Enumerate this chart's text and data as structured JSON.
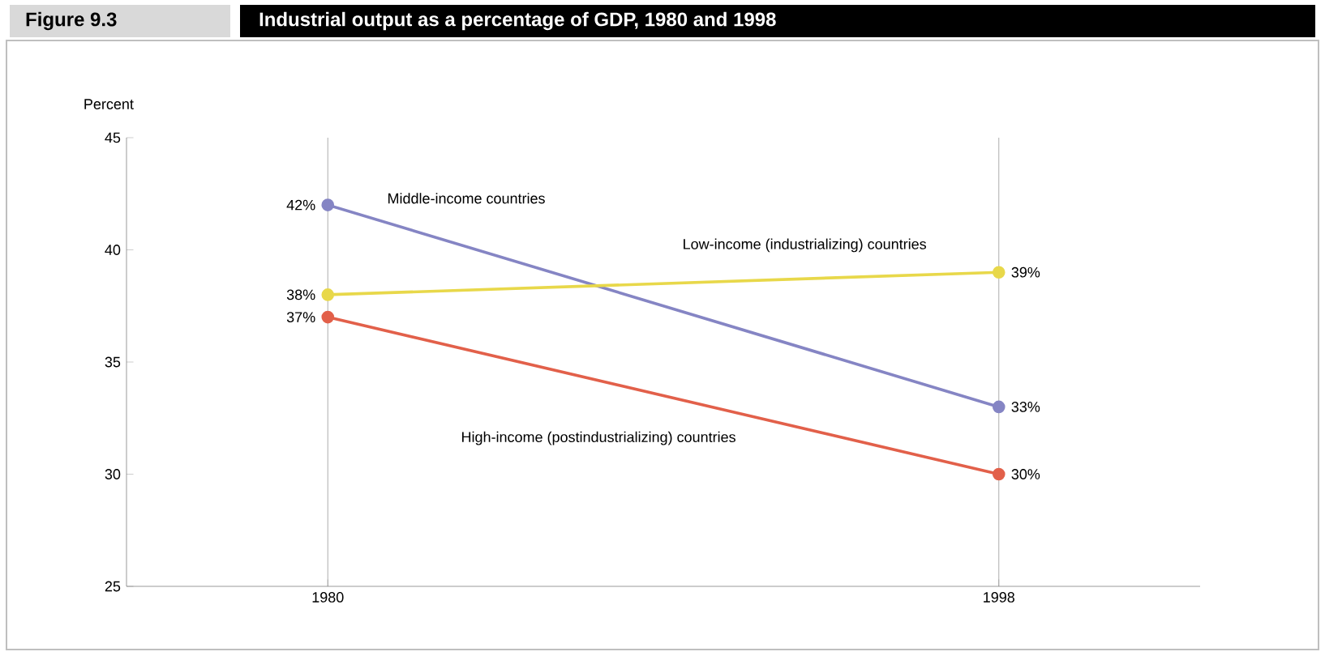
{
  "chart_data": {
    "type": "line",
    "title": "Industrial output as a percentage of GDP, 1980 and 1998",
    "ylabel": "Percent",
    "annotations": [
      "Figure 9.3"
    ],
    "categories": [
      "1980",
      "1998"
    ],
    "series": [
      {
        "name": "Middle-income countries",
        "color": "#8585c4",
        "values": [
          42,
          33
        ],
        "value_labels": [
          "42%",
          "33%"
        ]
      },
      {
        "name": "Low-income (industrializing) countries",
        "color": "#e8d84a",
        "values": [
          38,
          39
        ],
        "value_labels": [
          "38%",
          "39%"
        ]
      },
      {
        "name": "High-income (postindustrializing) countries",
        "color": "#e2604a",
        "values": [
          37,
          30
        ],
        "value_labels": [
          "37%",
          "30%"
        ]
      }
    ],
    "ylim": [
      25,
      45
    ],
    "yticks": [
      25,
      30,
      35,
      40,
      45
    ],
    "grid": "x",
    "marker": "circle",
    "line_style": "solid",
    "legend": false
  }
}
